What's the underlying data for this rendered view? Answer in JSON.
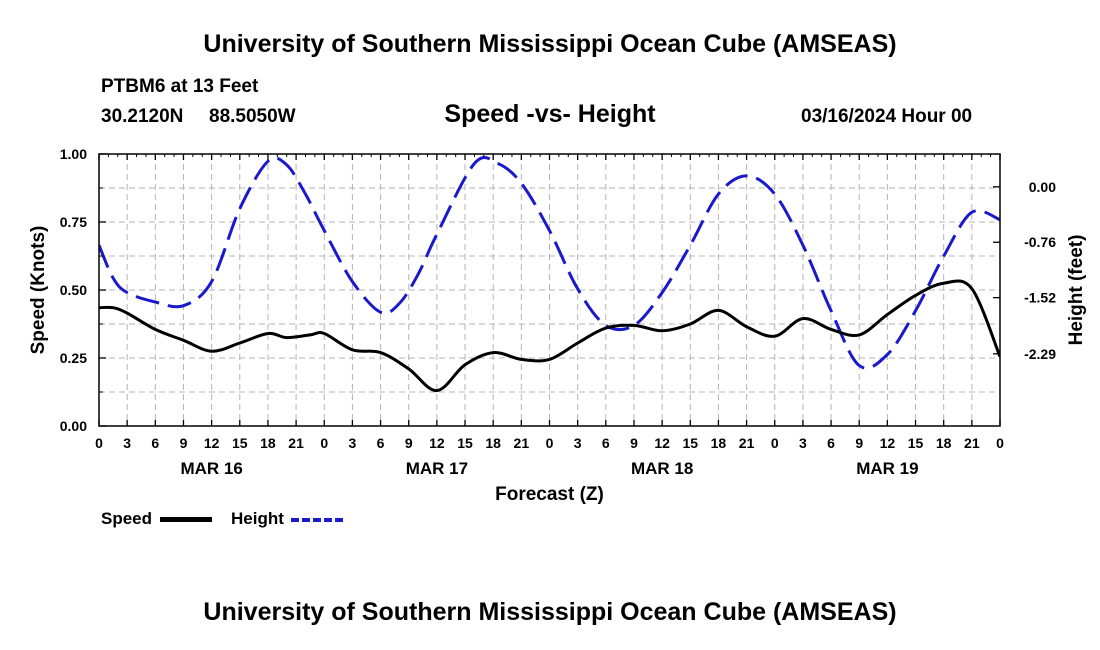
{
  "header": {
    "title": "University of Southern Mississippi Ocean Cube (AMSEAS)",
    "station": "PTBM6 at 13 Feet",
    "lat": "30.2120N",
    "lon": "88.5050W",
    "subtitle": "Speed -vs- Height",
    "run_time": "03/16/2024 Hour 00"
  },
  "footer": {
    "title": "University of Southern Mississippi Ocean Cube (AMSEAS)"
  },
  "legend": {
    "speed_label": "Speed",
    "height_label": "Height"
  },
  "colors": {
    "speed": "#000000",
    "height": "#1a1acc",
    "grid": "#b4b4b4"
  },
  "chart_data": {
    "type": "line",
    "title": "Speed -vs- Height",
    "xlabel": "Forecast (Z)",
    "ylabel": "Speed (Knots)",
    "y2label": "Height (feet)",
    "x_unit": "forecast hour",
    "xlim": [
      0,
      96
    ],
    "ylim": [
      0,
      1.0
    ],
    "y2lim": [
      -3.28,
      0.45
    ],
    "y_ticks": [
      {
        "value": 0.0,
        "label": "0.00"
      },
      {
        "value": 0.25,
        "label": "0.25"
      },
      {
        "value": 0.5,
        "label": "0.50"
      },
      {
        "value": 0.75,
        "label": "0.75"
      },
      {
        "value": 1.0,
        "label": "1.00"
      }
    ],
    "y2_ticks": [
      {
        "value": 0.0,
        "label": "0.00"
      },
      {
        "value": -0.76,
        "label": "-0.76"
      },
      {
        "value": -1.52,
        "label": "-1.52"
      },
      {
        "value": -2.29,
        "label": "-2.29"
      }
    ],
    "x_tick_labels": [
      "0",
      "3",
      "6",
      "9",
      "12",
      "15",
      "18",
      "21",
      "0",
      "3",
      "6",
      "9",
      "12",
      "15",
      "18",
      "21",
      "0",
      "3",
      "6",
      "9",
      "12",
      "15",
      "18",
      "21",
      "0",
      "3",
      "6",
      "9",
      "12",
      "15",
      "18",
      "21",
      "0"
    ],
    "day_labels": [
      {
        "hour": 12,
        "label": "MAR 16"
      },
      {
        "hour": 36,
        "label": "MAR 17"
      },
      {
        "hour": 60,
        "label": "MAR 18"
      },
      {
        "hour": 84,
        "label": "MAR 19"
      }
    ],
    "series": [
      {
        "name": "Speed",
        "axis": "left",
        "style": "solid",
        "x": [
          0,
          1.5,
          3,
          6,
          9,
          12,
          15,
          18,
          20,
          22.5,
          24,
          27,
          30,
          33,
          36,
          39,
          42,
          45,
          48,
          51,
          54,
          57,
          60,
          63,
          66,
          69,
          72,
          75,
          78,
          81,
          84,
          87,
          90,
          93,
          96
        ],
        "values": [
          0.435,
          0.435,
          0.415,
          0.355,
          0.315,
          0.275,
          0.305,
          0.34,
          0.325,
          0.335,
          0.34,
          0.28,
          0.27,
          0.21,
          0.13,
          0.225,
          0.27,
          0.245,
          0.245,
          0.305,
          0.36,
          0.37,
          0.35,
          0.375,
          0.425,
          0.365,
          0.33,
          0.395,
          0.355,
          0.335,
          0.41,
          0.48,
          0.525,
          0.505,
          0.255
        ]
      },
      {
        "name": "Height",
        "axis": "right",
        "style": "dashed",
        "x": [
          0,
          1.5,
          3,
          6,
          9,
          12,
          15,
          18,
          20,
          22,
          24,
          27,
          30,
          32,
          34,
          36,
          40,
          42.5,
          45,
          48,
          51,
          54,
          57,
          60,
          63,
          66,
          69,
          72,
          75,
          78,
          81,
          84,
          87,
          90,
          93,
          96
        ],
        "values": [
          -0.8,
          -1.25,
          -1.45,
          -1.58,
          -1.63,
          -1.3,
          -0.3,
          0.35,
          0.3,
          -0.1,
          -0.6,
          -1.3,
          -1.72,
          -1.6,
          -1.2,
          -0.65,
          0.32,
          0.32,
          0.05,
          -0.6,
          -1.4,
          -1.9,
          -1.9,
          -1.45,
          -0.8,
          -0.1,
          0.15,
          -0.1,
          -0.8,
          -1.7,
          -2.45,
          -2.3,
          -1.7,
          -0.95,
          -0.35,
          -0.45
        ]
      }
    ]
  }
}
